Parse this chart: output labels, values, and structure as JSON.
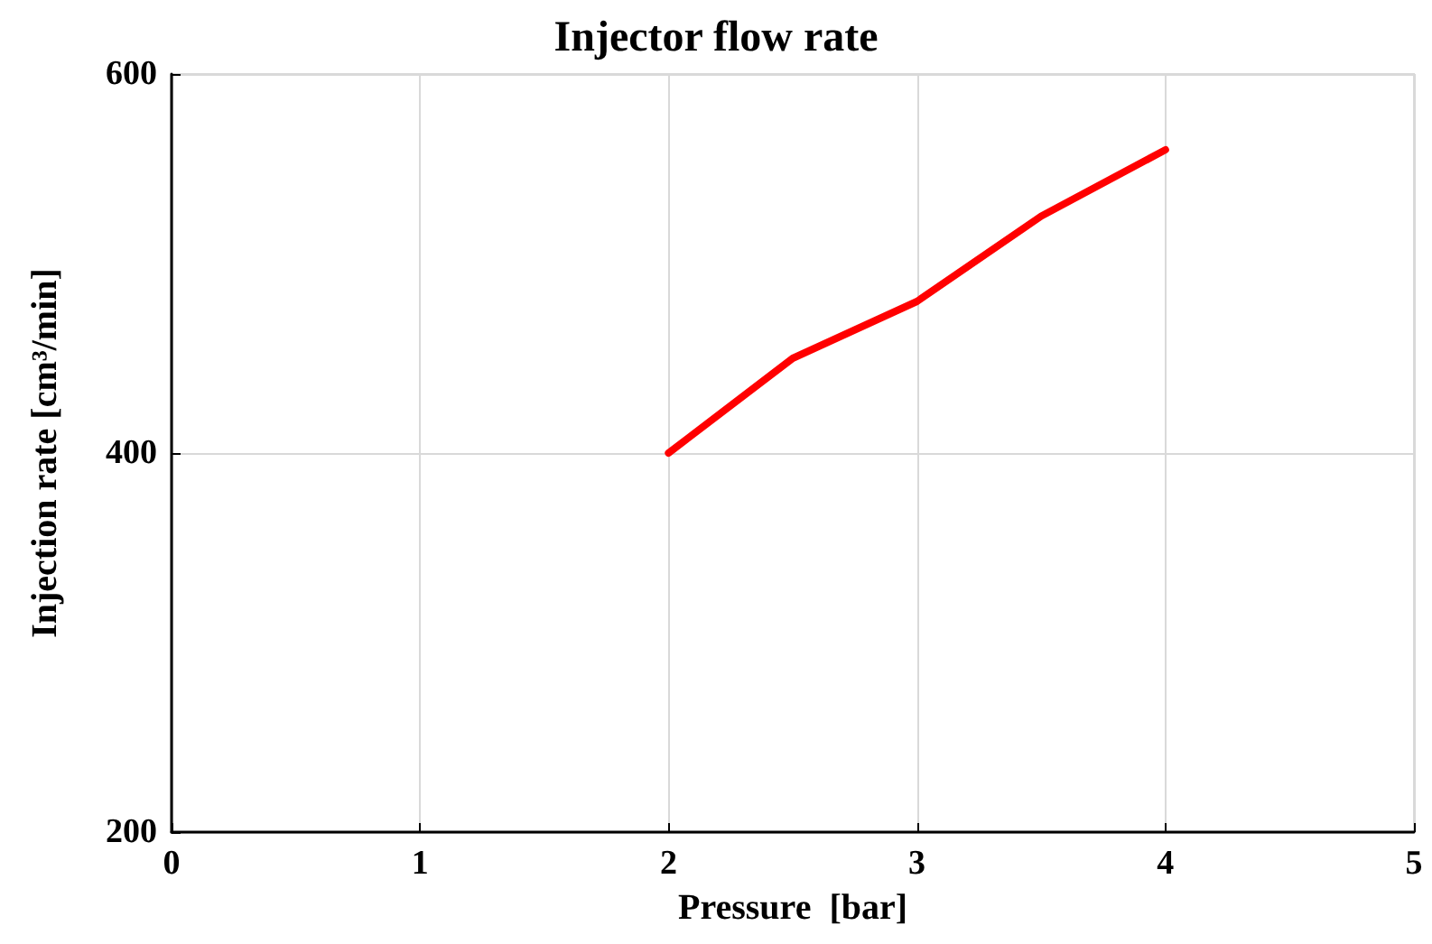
{
  "chart_data": {
    "type": "line",
    "title": "Injector flow rate",
    "xlabel": "Pressure  [bar]",
    "ylabel": "Injection rate [cm³/min]",
    "x": [
      2,
      2.5,
      3,
      3.5,
      4
    ],
    "series": [
      {
        "color": "#ff0000",
        "values": [
          400,
          450,
          480,
          525,
          560
        ]
      }
    ],
    "xlim": [
      0,
      5
    ],
    "xticks": [
      0,
      1,
      2,
      3,
      4,
      5
    ],
    "ylim": [
      200,
      600
    ],
    "yticks": [
      200,
      400,
      600
    ],
    "grid": true,
    "marker": "none",
    "line_style": "solid"
  }
}
